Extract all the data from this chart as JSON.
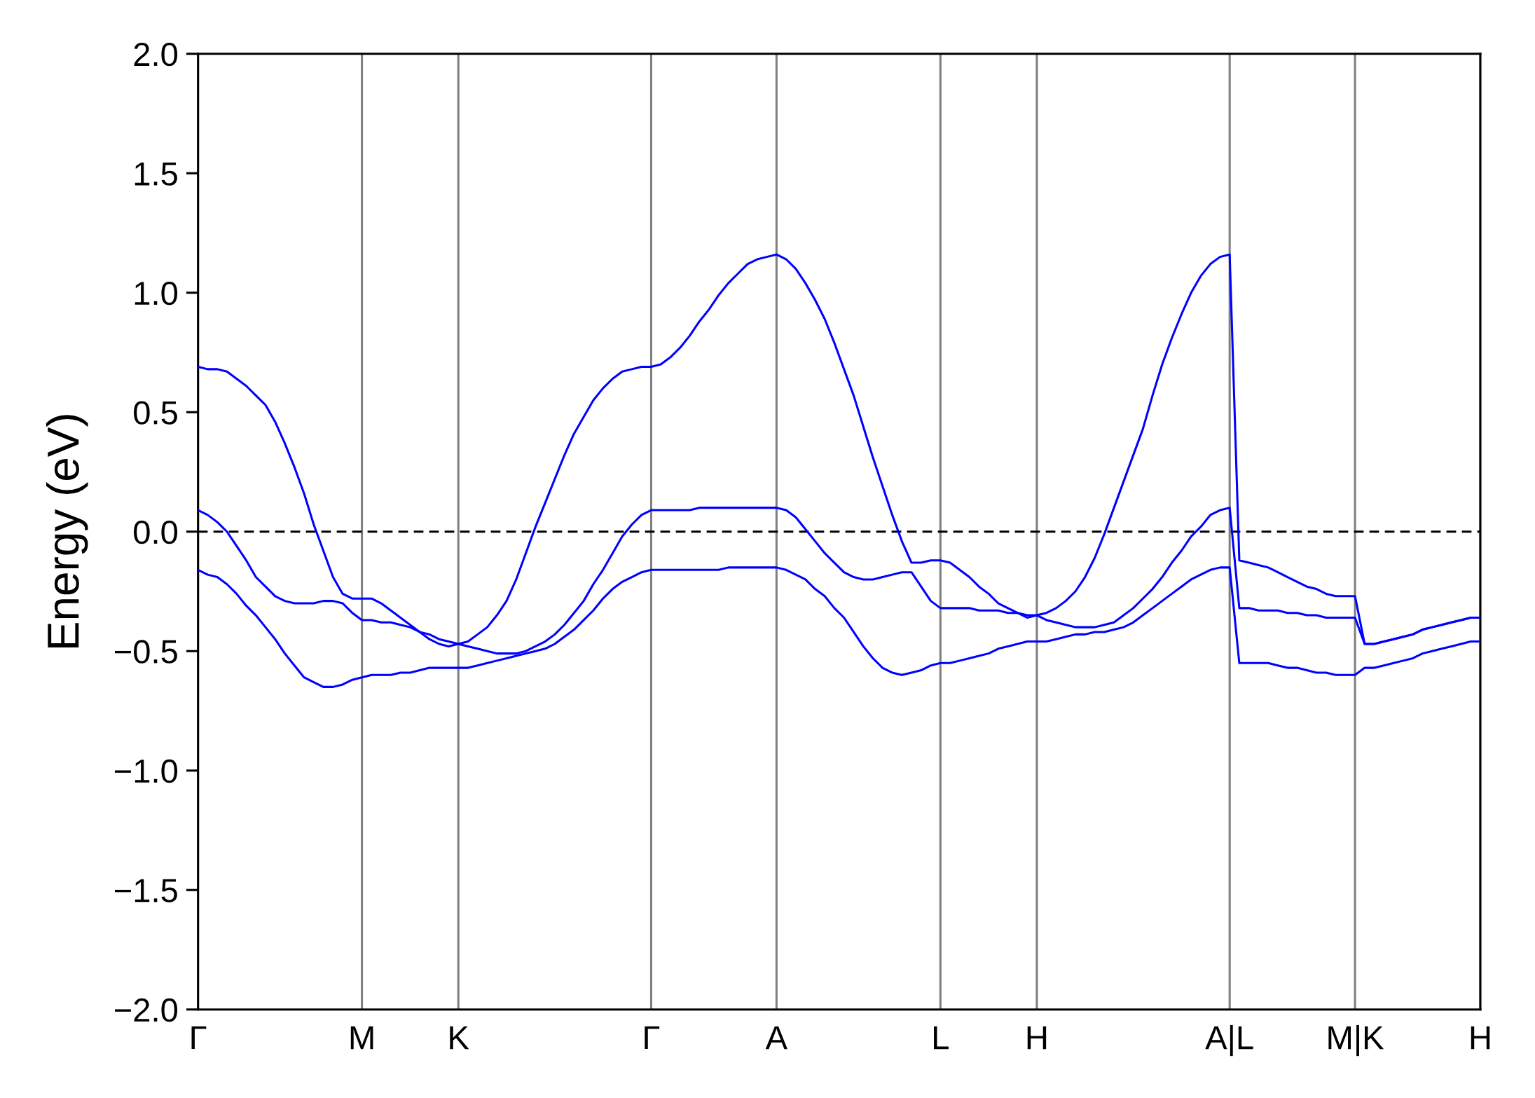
{
  "chart_data": {
    "type": "line",
    "ylabel": "Energy (eV)",
    "ylim": [
      -2,
      2
    ],
    "categories": [
      "Γ",
      null,
      null,
      null,
      null,
      null,
      null,
      null,
      null,
      null,
      null,
      null,
      null,
      null,
      null,
      null,
      null,
      "M",
      null,
      null,
      null,
      null,
      null,
      null,
      null,
      null,
      null,
      "K",
      null,
      null,
      null,
      null,
      null,
      null,
      null,
      null,
      null,
      null,
      null,
      null,
      null,
      null,
      null,
      null,
      null,
      null,
      null,
      "Γ",
      null,
      null,
      null,
      null,
      null,
      null,
      null,
      null,
      null,
      null,
      null,
      null,
      "A",
      null,
      null,
      null,
      null,
      null,
      null,
      null,
      null,
      null,
      null,
      null,
      null,
      null,
      null,
      null,
      null,
      "L",
      null,
      null,
      null,
      null,
      null,
      null,
      null,
      null,
      null,
      "H",
      null,
      null,
      null,
      null,
      null,
      null,
      null,
      null,
      null,
      null,
      null,
      null,
      null,
      null,
      null,
      null,
      null,
      null,
      null,
      "A|L",
      null,
      null,
      null,
      null,
      null,
      null,
      null,
      null,
      null,
      null,
      null,
      null,
      "M|K",
      null,
      null,
      null,
      null,
      null,
      null,
      null,
      null,
      null,
      null,
      null,
      null,
      "H"
    ],
    "yticks": [
      {
        "value": -2,
        "label": "−2.0"
      },
      {
        "value": -1.5,
        "label": "−1.5"
      },
      {
        "value": -1,
        "label": "−1.0"
      },
      {
        "value": -0.5,
        "label": "−0.5"
      },
      {
        "value": 0,
        "label": "0.0"
      },
      {
        "value": 0.5,
        "label": "0.5"
      },
      {
        "value": 1,
        "label": "1.0"
      },
      {
        "value": 1.5,
        "label": "1.5"
      },
      {
        "value": 2,
        "label": "2.0"
      }
    ],
    "grid": "x",
    "line_style": "solid",
    "ref_lines": [
      {
        "axis": "y",
        "value": 0,
        "color": "#000000",
        "line_style": "dashed"
      }
    ],
    "series": [
      {
        "color": "#0000ff",
        "values": [
          -0.16,
          -0.18,
          -0.19,
          -0.22,
          -0.26,
          -0.31,
          -0.35,
          -0.4,
          -0.45,
          -0.51,
          -0.56,
          -0.61,
          -0.63,
          -0.65,
          -0.65,
          -0.64,
          -0.62,
          -0.61,
          -0.6,
          -0.6,
          -0.6,
          -0.59,
          -0.59,
          -0.58,
          -0.57,
          -0.57,
          -0.57,
          -0.57,
          -0.57,
          -0.56,
          -0.55,
          -0.54,
          -0.53,
          -0.52,
          -0.51,
          -0.5,
          -0.49,
          -0.47,
          -0.44,
          -0.41,
          -0.37,
          -0.33,
          -0.28,
          -0.24,
          -0.21,
          -0.19,
          -0.17,
          -0.16,
          -0.16,
          -0.16,
          -0.16,
          -0.16,
          -0.16,
          -0.16,
          -0.16,
          -0.15,
          -0.15,
          -0.15,
          -0.15,
          -0.15,
          -0.15,
          -0.16,
          -0.18,
          -0.2,
          -0.24,
          -0.27,
          -0.32,
          -0.36,
          -0.42,
          -0.48,
          -0.53,
          -0.57,
          -0.59,
          -0.6,
          -0.59,
          -0.58,
          -0.56,
          -0.55,
          -0.55,
          -0.54,
          -0.53,
          -0.52,
          -0.51,
          -0.49,
          -0.48,
          -0.47,
          -0.46,
          -0.46,
          -0.46,
          -0.45,
          -0.44,
          -0.43,
          -0.43,
          -0.42,
          -0.42,
          -0.41,
          -0.4,
          -0.38,
          -0.35,
          -0.32,
          -0.29,
          -0.26,
          -0.23,
          -0.2,
          -0.18,
          -0.16,
          -0.15,
          -0.15,
          -0.55,
          -0.55,
          -0.55,
          -0.55,
          -0.56,
          -0.57,
          -0.57,
          -0.58,
          -0.59,
          -0.59,
          -0.6,
          -0.6,
          -0.6,
          -0.57,
          -0.57,
          -0.56,
          -0.55,
          -0.54,
          -0.53,
          -0.51,
          -0.5,
          -0.49,
          -0.48,
          -0.47,
          -0.46,
          -0.46
        ]
      },
      {
        "color": "#0000ff",
        "values": [
          0.09,
          0.07,
          0.04,
          0.0,
          -0.06,
          -0.12,
          -0.19,
          -0.23,
          -0.27,
          -0.29,
          -0.3,
          -0.3,
          -0.3,
          -0.29,
          -0.29,
          -0.3,
          -0.34,
          -0.37,
          -0.37,
          -0.38,
          -0.38,
          -0.39,
          -0.4,
          -0.42,
          -0.45,
          -0.47,
          -0.48,
          -0.47,
          -0.48,
          -0.49,
          -0.5,
          -0.51,
          -0.51,
          -0.51,
          -0.5,
          -0.48,
          -0.46,
          -0.43,
          -0.39,
          -0.34,
          -0.29,
          -0.22,
          -0.16,
          -0.09,
          -0.02,
          0.03,
          0.07,
          0.09,
          0.09,
          0.09,
          0.09,
          0.09,
          0.1,
          0.1,
          0.1,
          0.1,
          0.1,
          0.1,
          0.1,
          0.1,
          0.1,
          0.09,
          0.06,
          0.01,
          -0.04,
          -0.09,
          -0.13,
          -0.17,
          -0.19,
          -0.2,
          -0.2,
          -0.19,
          -0.18,
          -0.17,
          -0.17,
          -0.23,
          -0.29,
          -0.32,
          -0.32,
          -0.32,
          -0.32,
          -0.33,
          -0.33,
          -0.33,
          -0.34,
          -0.34,
          -0.36,
          -0.35,
          -0.37,
          -0.38,
          -0.39,
          -0.4,
          -0.4,
          -0.4,
          -0.39,
          -0.38,
          -0.35,
          -0.32,
          -0.28,
          -0.24,
          -0.19,
          -0.13,
          -0.08,
          -0.02,
          0.02,
          0.07,
          0.09,
          0.1,
          -0.32,
          -0.32,
          -0.33,
          -0.33,
          -0.33,
          -0.34,
          -0.34,
          -0.35,
          -0.35,
          -0.36,
          -0.36,
          -0.36,
          -0.36,
          -0.47,
          -0.47,
          -0.46,
          -0.45,
          -0.44,
          -0.43,
          -0.41,
          -0.4,
          -0.39,
          -0.38,
          -0.37,
          -0.36,
          -0.36
        ]
      },
      {
        "color": "#0000ff",
        "values": [
          0.69,
          0.68,
          0.68,
          0.67,
          0.64,
          0.61,
          0.57,
          0.53,
          0.46,
          0.37,
          0.27,
          0.16,
          0.03,
          -0.08,
          -0.19,
          -0.26,
          -0.28,
          -0.28,
          -0.28,
          -0.3,
          -0.33,
          -0.36,
          -0.39,
          -0.42,
          -0.43,
          -0.45,
          -0.46,
          -0.47,
          -0.46,
          -0.43,
          -0.4,
          -0.35,
          -0.29,
          -0.2,
          -0.09,
          0.02,
          0.12,
          0.22,
          0.32,
          0.41,
          0.48,
          0.55,
          0.6,
          0.64,
          0.67,
          0.68,
          0.69,
          0.69,
          0.7,
          0.73,
          0.77,
          0.82,
          0.88,
          0.93,
          0.99,
          1.04,
          1.08,
          1.12,
          1.14,
          1.15,
          1.16,
          1.14,
          1.1,
          1.04,
          0.97,
          0.89,
          0.79,
          0.68,
          0.57,
          0.44,
          0.31,
          0.19,
          0.07,
          -0.04,
          -0.13,
          -0.13,
          -0.12,
          -0.12,
          -0.13,
          -0.16,
          -0.19,
          -0.23,
          -0.26,
          -0.3,
          -0.32,
          -0.34,
          -0.35,
          -0.35,
          -0.34,
          -0.32,
          -0.29,
          -0.25,
          -0.19,
          -0.11,
          -0.01,
          0.1,
          0.21,
          0.32,
          0.43,
          0.57,
          0.7,
          0.81,
          0.91,
          1.0,
          1.07,
          1.12,
          1.15,
          1.16,
          -0.12,
          -0.13,
          -0.14,
          -0.15,
          -0.17,
          -0.19,
          -0.21,
          -0.23,
          -0.24,
          -0.26,
          -0.27,
          -0.27,
          -0.27,
          -0.47,
          -0.47,
          -0.46,
          -0.45,
          -0.44,
          -0.43,
          -0.41,
          -0.4,
          -0.39,
          -0.38,
          -0.37,
          -0.36,
          -0.36
        ]
      }
    ]
  }
}
